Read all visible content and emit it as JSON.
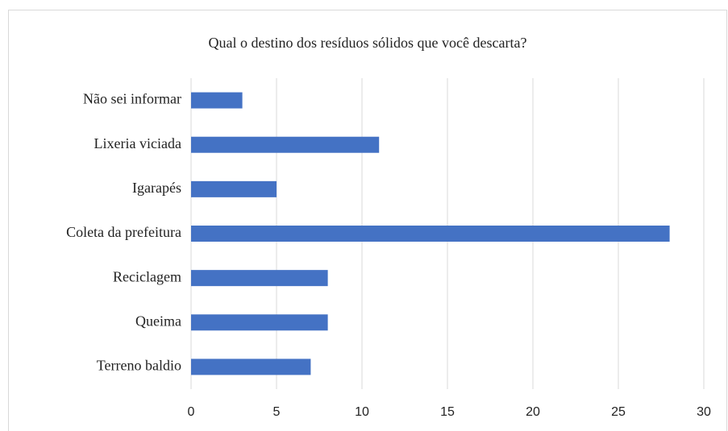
{
  "chart_data": {
    "type": "bar",
    "orientation": "horizontal",
    "title": "Qual o destino dos resíduos sólidos que você descarta?",
    "categories": [
      "Não sei informar",
      "Lixeria viciada",
      "Igarapés",
      "Coleta da prefeitura",
      "Reciclagem",
      "Queima",
      "Terreno baldio"
    ],
    "values": [
      3,
      11,
      5,
      28,
      8,
      8,
      7
    ],
    "color": "#4472c4",
    "xlim": [
      0,
      30
    ],
    "xticks": [
      0,
      5,
      10,
      15,
      20,
      25,
      30
    ],
    "grid": true
  }
}
